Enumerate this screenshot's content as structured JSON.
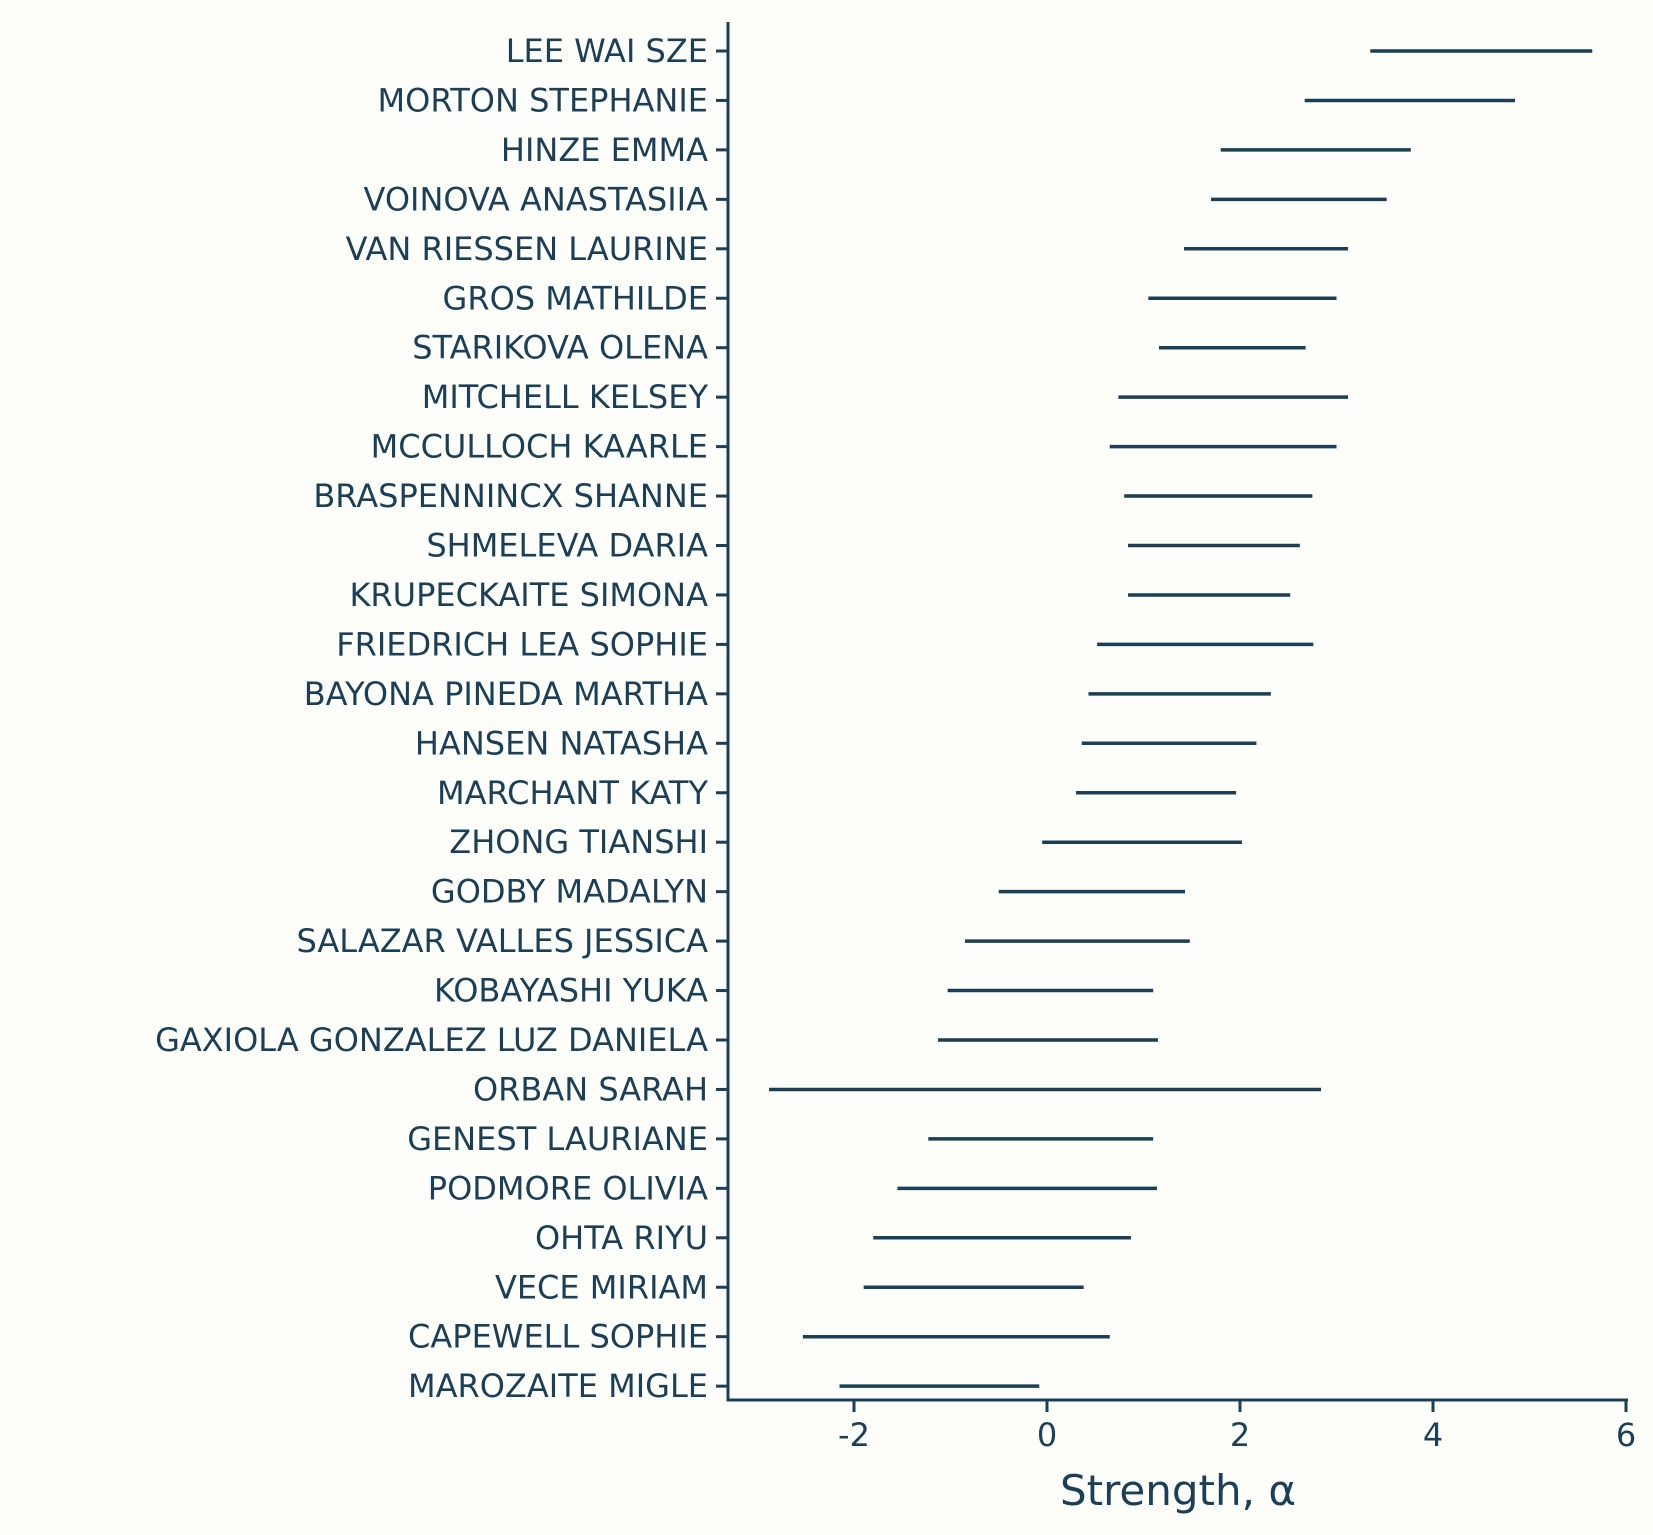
{
  "chart_data": {
    "type": "interval",
    "xlabel": "Strength, α",
    "ylabel": "",
    "title": "",
    "xlim": [
      -3.3,
      6.05
    ],
    "xticks": [
      -2,
      0,
      2,
      4,
      6
    ],
    "xtick_labels": [
      "-2",
      "0",
      "2",
      "4",
      "6"
    ],
    "grid": false,
    "colors": {
      "line": "#1a3f56",
      "background": "#fdfdf9"
    },
    "rows": [
      {
        "name": "LEE WAI SZE",
        "low": 3.35,
        "high": 5.65
      },
      {
        "name": "MORTON STEPHANIE",
        "low": 2.67,
        "high": 4.85
      },
      {
        "name": "HINZE EMMA",
        "low": 1.8,
        "high": 3.77
      },
      {
        "name": "VOINOVA ANASTASIIA",
        "low": 1.7,
        "high": 3.52
      },
      {
        "name": "VAN RIESSEN LAURINE",
        "low": 1.42,
        "high": 3.12
      },
      {
        "name": "GROS MATHILDE",
        "low": 1.05,
        "high": 3.0
      },
      {
        "name": "STARIKOVA OLENA",
        "low": 1.16,
        "high": 2.68
      },
      {
        "name": "MITCHELL KELSEY",
        "low": 0.74,
        "high": 3.12
      },
      {
        "name": "MCCULLOCH KAARLE",
        "low": 0.65,
        "high": 3.0
      },
      {
        "name": "BRASPENNINCX SHANNE",
        "low": 0.8,
        "high": 2.75
      },
      {
        "name": "SHMELEVA DARIA",
        "low": 0.84,
        "high": 2.62
      },
      {
        "name": "KRUPECKAITE SIMONA",
        "low": 0.84,
        "high": 2.52
      },
      {
        "name": "FRIEDRICH LEA SOPHIE",
        "low": 0.52,
        "high": 2.76
      },
      {
        "name": "BAYONA PINEDA MARTHA",
        "low": 0.43,
        "high": 2.32
      },
      {
        "name": "HANSEN NATASHA",
        "low": 0.36,
        "high": 2.17
      },
      {
        "name": "MARCHANT KATY",
        "low": 0.3,
        "high": 1.96
      },
      {
        "name": "ZHONG TIANSHI",
        "low": -0.05,
        "high": 2.02
      },
      {
        "name": "GODBY MADALYN",
        "low": -0.5,
        "high": 1.43
      },
      {
        "name": "SALAZAR VALLES JESSICA",
        "low": -0.85,
        "high": 1.48
      },
      {
        "name": "KOBAYASHI YUKA",
        "low": -1.03,
        "high": 1.1
      },
      {
        "name": "GAXIOLA GONZALEZ LUZ DANIELA",
        "low": -1.13,
        "high": 1.15
      },
      {
        "name": "ORBAN SARAH",
        "low": -2.88,
        "high": 2.84
      },
      {
        "name": "GENEST LAURIANE",
        "low": -1.23,
        "high": 1.1
      },
      {
        "name": "PODMORE OLIVIA",
        "low": -1.55,
        "high": 1.14
      },
      {
        "name": "OHTA RIYU",
        "low": -1.8,
        "high": 0.87
      },
      {
        "name": "VECE MIRIAM",
        "low": -1.9,
        "high": 0.38
      },
      {
        "name": "CAPEWELL SOPHIE",
        "low": -2.53,
        "high": 0.65
      },
      {
        "name": "MAROZAITE MIGLE",
        "low": -2.15,
        "high": -0.08
      }
    ]
  }
}
